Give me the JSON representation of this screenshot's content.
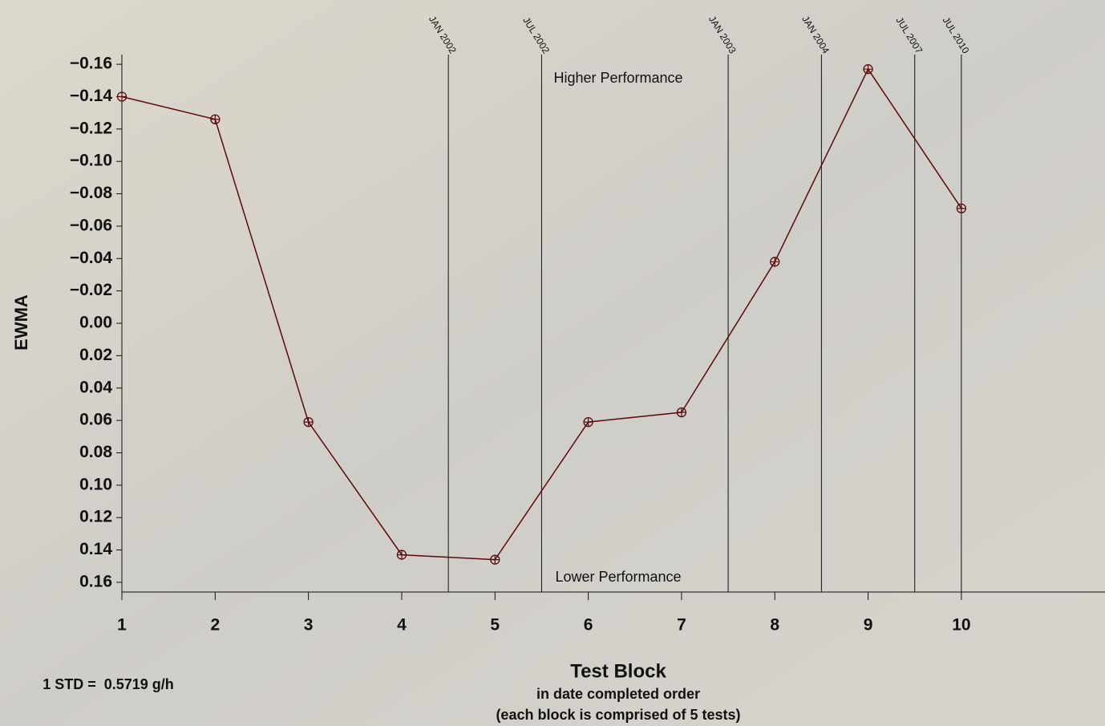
{
  "chart_data": {
    "type": "line",
    "ylabel": "EWMA",
    "xlabel": "Test Block",
    "xlabel_lines": [
      "in date completed order",
      "(each block is comprised of 5 tests)"
    ],
    "annotations": {
      "top": "Higher Performance",
      "bottom": "Lower Performance",
      "note": "1 STD =  0.5719 g/h"
    },
    "x": [
      1,
      2,
      3,
      4,
      5,
      6,
      7,
      8,
      9,
      10
    ],
    "series": [
      {
        "name": "EWMA",
        "color": "#5a0a0a",
        "values": [
          -0.14,
          -0.126,
          0.061,
          0.143,
          0.146,
          0.061,
          0.055,
          -0.038,
          -0.157,
          -0.071
        ]
      }
    ],
    "xlim": [
      1,
      11.54
    ],
    "xticks": [
      1,
      2,
      3,
      4,
      5,
      6,
      7,
      8,
      9,
      10
    ],
    "ylim": [
      -0.166,
      0.166
    ],
    "y_reversed": true,
    "yticks": [
      {
        "value": -0.16,
        "label": "−0.16"
      },
      {
        "value": -0.14,
        "label": "−0.14"
      },
      {
        "value": -0.12,
        "label": "−0.12"
      },
      {
        "value": -0.1,
        "label": "−0.10"
      },
      {
        "value": -0.08,
        "label": "−0.08"
      },
      {
        "value": -0.06,
        "label": "−0.06"
      },
      {
        "value": -0.04,
        "label": "−0.04"
      },
      {
        "value": -0.02,
        "label": "−0.02"
      },
      {
        "value": 0,
        "label": "0.00"
      },
      {
        "value": 0.02,
        "label": "0.02"
      },
      {
        "value": 0.04,
        "label": "0.04"
      },
      {
        "value": 0.06,
        "label": "0.06"
      },
      {
        "value": 0.08,
        "label": "0.08"
      },
      {
        "value": 0.1,
        "label": "0.10"
      },
      {
        "value": 0.12,
        "label": "0.12"
      },
      {
        "value": 0.14,
        "label": "0.14"
      },
      {
        "value": 0.16,
        "label": "0.16"
      }
    ],
    "events": [
      {
        "x": 4.5,
        "label": "JAN 2002"
      },
      {
        "x": 5.5,
        "label": "JUL 2002"
      },
      {
        "x": 7.5,
        "label": "JAN 2003"
      },
      {
        "x": 8.5,
        "label": "JAN 2004"
      },
      {
        "x": 9.5,
        "label": "JUL 2007"
      },
      {
        "x": 10,
        "label": "JUL 2010"
      }
    ]
  }
}
